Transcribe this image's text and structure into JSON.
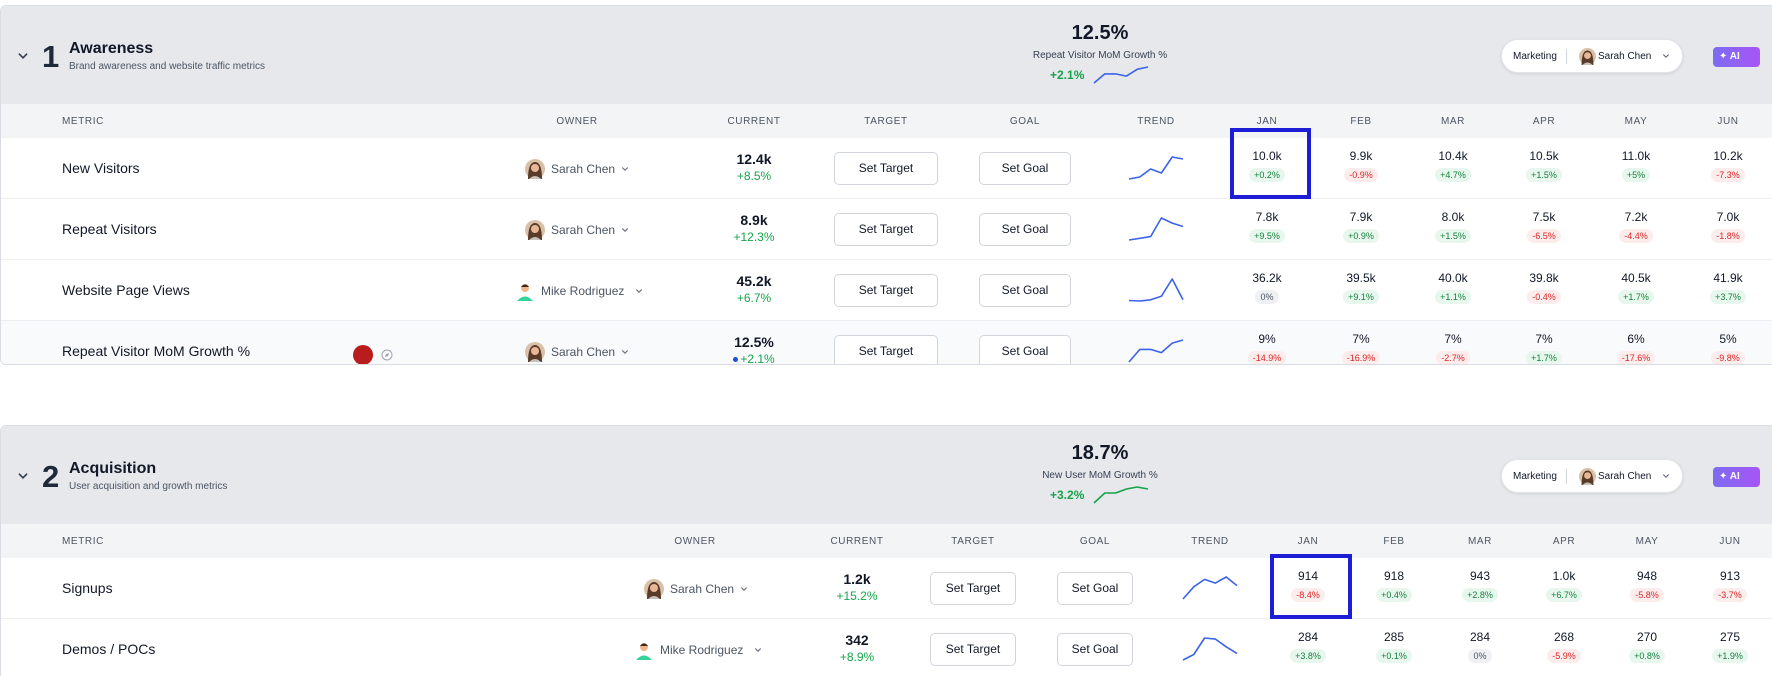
{
  "sections": [
    {
      "number": "1",
      "title": "Awareness",
      "subtitle": "Brand awareness and website traffic metrics",
      "kpi": {
        "value": "12.5%",
        "label": "Repeat Visitor MoM Growth %",
        "delta": "+2.1%",
        "spark_color": "#3b63e8",
        "spark": [
          2,
          6,
          6,
          5,
          8,
          9
        ]
      },
      "department": "Marketing",
      "owner": "Sarah Chen",
      "ai_label": "AI",
      "columns": [
        "Metric",
        "Owner",
        "Current",
        "Target",
        "Goal",
        "Trend",
        "Jan",
        "Feb",
        "Mar",
        "Apr",
        "May",
        "Jun"
      ],
      "rows": [
        {
          "name": "New Visitors",
          "owner": "Sarah Chen",
          "current": "12.4k",
          "current_delta": "+8.5%",
          "target_label": "Set Target",
          "goal_label": "Set Goal",
          "trend": [
            9.9,
            10.0,
            10.4,
            10.2,
            11.0,
            10.9
          ],
          "months": [
            {
              "v": "10.0k",
              "d": "+0.2%",
              "s": "pos"
            },
            {
              "v": "9.9k",
              "d": "-0.9%",
              "s": "neg"
            },
            {
              "v": "10.4k",
              "d": "+4.7%",
              "s": "pos"
            },
            {
              "v": "10.5k",
              "d": "+1.5%",
              "s": "pos"
            },
            {
              "v": "11.0k",
              "d": "+5%",
              "s": "pos"
            },
            {
              "v": "10.2k",
              "d": "-7.3%",
              "s": "neg"
            }
          ]
        },
        {
          "name": "Repeat Visitors",
          "owner": "Sarah Chen",
          "current": "8.9k",
          "current_delta": "+12.3%",
          "target_label": "Set Target",
          "goal_label": "Set Goal",
          "trend": [
            7.0,
            7.1,
            7.2,
            8.3,
            8.0,
            7.8
          ],
          "months": [
            {
              "v": "7.8k",
              "d": "+9.5%",
              "s": "pos"
            },
            {
              "v": "7.9k",
              "d": "+0.9%",
              "s": "pos"
            },
            {
              "v": "8.0k",
              "d": "+1.5%",
              "s": "pos"
            },
            {
              "v": "7.5k",
              "d": "-6.5%",
              "s": "neg"
            },
            {
              "v": "7.2k",
              "d": "-4.4%",
              "s": "neg"
            },
            {
              "v": "7.0k",
              "d": "-1.8%",
              "s": "neg"
            }
          ]
        },
        {
          "name": "Website Page Views",
          "owner": "Mike Rodriguez",
          "current": "45.2k",
          "current_delta": "+6.7%",
          "target_label": "Set Target",
          "goal_label": "Set Goal",
          "trend": [
            36.2,
            36.0,
            36.5,
            38.0,
            45.2,
            36.5
          ],
          "months": [
            {
              "v": "36.2k",
              "d": "0%",
              "s": "zero"
            },
            {
              "v": "39.5k",
              "d": "+9.1%",
              "s": "pos"
            },
            {
              "v": "40.0k",
              "d": "+1.1%",
              "s": "pos"
            },
            {
              "v": "39.8k",
              "d": "-0.4%",
              "s": "neg"
            },
            {
              "v": "40.5k",
              "d": "+1.7%",
              "s": "pos"
            },
            {
              "v": "41.9k",
              "d": "+3.7%",
              "s": "pos"
            }
          ]
        },
        {
          "name": "Repeat Visitor MoM Growth %",
          "owner": "Sarah Chen",
          "current": "12.5%",
          "current_delta": "+2.1%",
          "target_label": "Set Target",
          "goal_label": "Set Goal",
          "trend": [
            5,
            9,
            9,
            8,
            11,
            12
          ],
          "months": [
            {
              "v": "9%",
              "d": "-14.9%",
              "s": "neg"
            },
            {
              "v": "7%",
              "d": "-16.9%",
              "s": "neg"
            },
            {
              "v": "7%",
              "d": "-2.7%",
              "s": "neg"
            },
            {
              "v": "7%",
              "d": "+1.7%",
              "s": "pos"
            },
            {
              "v": "6%",
              "d": "-17.6%",
              "s": "neg"
            },
            {
              "v": "5%",
              "d": "-9.8%",
              "s": "neg"
            }
          ]
        }
      ]
    },
    {
      "number": "2",
      "title": "Acquisition",
      "subtitle": "User acquisition and growth metrics",
      "kpi": {
        "value": "18.7%",
        "label": "New User MoM Growth %",
        "delta": "+3.2%",
        "spark_color": "#16a34a",
        "spark": [
          2,
          7,
          7,
          9,
          10,
          9
        ]
      },
      "department": "Marketing",
      "owner": "Sarah Chen",
      "ai_label": "AI",
      "columns": [
        "Metric",
        "Owner",
        "Current",
        "Target",
        "Goal",
        "Trend",
        "Jan",
        "Feb",
        "Mar",
        "Apr",
        "May",
        "Jun"
      ],
      "rows": [
        {
          "name": "Signups",
          "owner": "Sarah Chen",
          "current": "1.2k",
          "current_delta": "+15.2%",
          "target_label": "Set Target",
          "goal_label": "Set Goal",
          "trend": [
            880,
            930,
            960,
            945,
            970,
            935
          ],
          "months": [
            {
              "v": "914",
              "d": "-8.4%",
              "s": "neg"
            },
            {
              "v": "918",
              "d": "+0.4%",
              "s": "pos"
            },
            {
              "v": "943",
              "d": "+2.8%",
              "s": "pos"
            },
            {
              "v": "1.0k",
              "d": "+6.7%",
              "s": "pos"
            },
            {
              "v": "948",
              "d": "-5.8%",
              "s": "neg"
            },
            {
              "v": "913",
              "d": "-3.7%",
              "s": "neg"
            }
          ]
        },
        {
          "name": "Demos / POCs",
          "owner": "Mike Rodriguez",
          "current": "342",
          "current_delta": "+8.9%",
          "target_label": "Set Target",
          "goal_label": "Set Goal",
          "trend": [
            270,
            275,
            290,
            289,
            282,
            276
          ],
          "months": [
            {
              "v": "284",
              "d": "+3.8%",
              "s": "pos"
            },
            {
              "v": "285",
              "d": "+0.1%",
              "s": "pos"
            },
            {
              "v": "284",
              "d": "0%",
              "s": "zero"
            },
            {
              "v": "268",
              "d": "-5.9%",
              "s": "neg"
            },
            {
              "v": "270",
              "d": "+0.8%",
              "s": "pos"
            },
            {
              "v": "275",
              "d": "+1.9%",
              "s": "pos"
            }
          ]
        }
      ]
    }
  ],
  "colors": {
    "accent_blue": "#3b63e8",
    "positive": "#16a34a",
    "negative": "#dc2626",
    "highlight": "#1d1dd6",
    "ai_purple": "#8b5cf6"
  },
  "icons": {
    "collapse": "chevron-down-icon",
    "ai": "sparkle-icon",
    "status": "red-circle-icon",
    "link": "compass-icon"
  }
}
